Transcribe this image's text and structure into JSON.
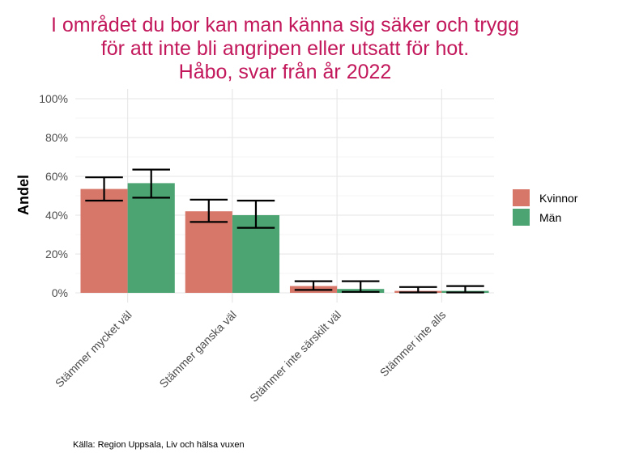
{
  "chart_data": {
    "type": "bar",
    "title_lines": [
      "I området du bor kan man känna sig säker och trygg",
      "för att inte bli angripen eller utsatt för hot.",
      "Håbo, svar från år 2022"
    ],
    "xlabel": "",
    "ylabel": "Andel",
    "ylim": [
      0,
      100
    ],
    "yticks": [
      0,
      20,
      40,
      60,
      80,
      100
    ],
    "ytick_labels": [
      "0%",
      "20%",
      "40%",
      "60%",
      "80%",
      "100%"
    ],
    "categories": [
      "Stämmer mycket väl",
      "Stämmer ganska väl",
      "Stämmer inte särskilt väl",
      "Stämmer inte alls"
    ],
    "series": [
      {
        "name": "Kvinnor",
        "color": "#d7776a",
        "values": [
          53.5,
          42,
          3.5,
          1
        ],
        "error_low": [
          47.5,
          36.5,
          1.5,
          0.2
        ],
        "error_high": [
          59.5,
          48,
          6,
          3
        ]
      },
      {
        "name": "Män",
        "color": "#4ba472",
        "values": [
          56.5,
          40,
          2,
          1
        ],
        "error_low": [
          49,
          33.5,
          0.5,
          0.2
        ],
        "error_high": [
          63.5,
          47.5,
          6,
          3.5
        ]
      }
    ],
    "legend_position": "right",
    "grid": true,
    "title_color": "#c2185b",
    "caption": "Källa: Region Uppsala, Liv och hälsa vuxen"
  }
}
